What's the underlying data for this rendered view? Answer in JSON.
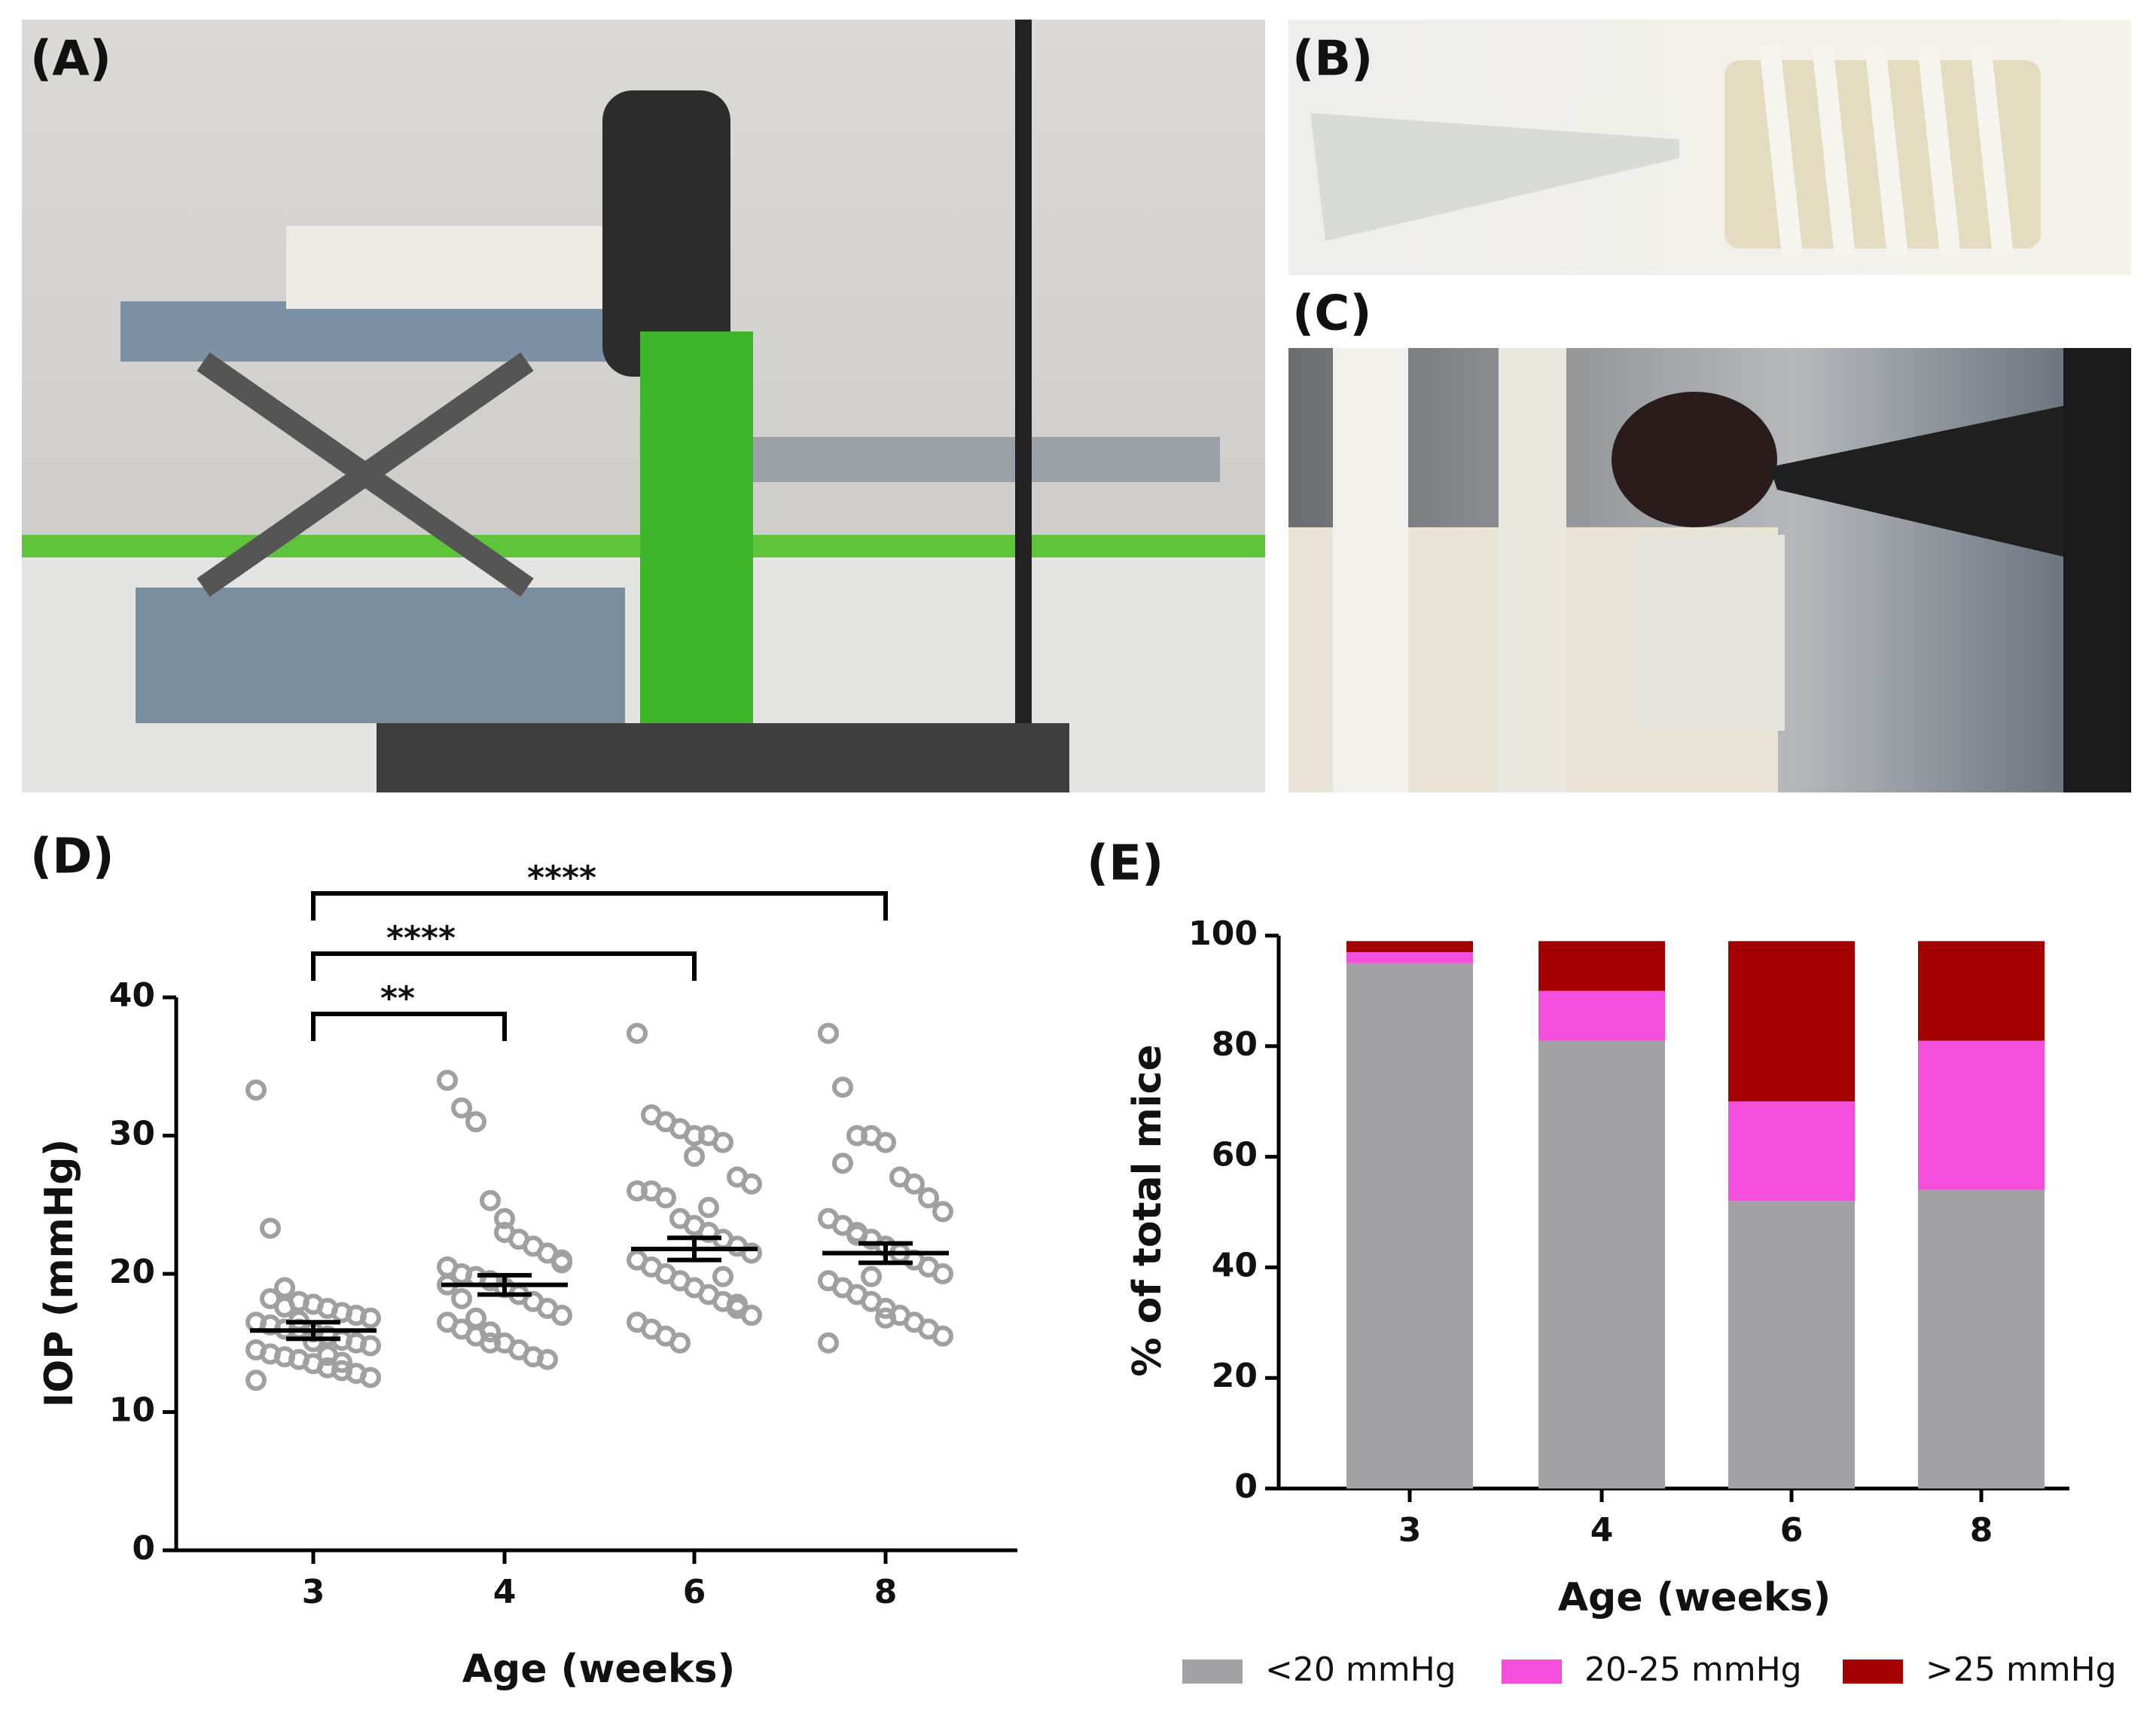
{
  "panels": [
    {
      "label": "(A)"
    },
    {
      "label": "(B)"
    },
    {
      "label": "(C)"
    }
  ],
  "chart_data": [
    {
      "type": "scatter",
      "panel_label": "(D)",
      "xlabel": "Age (weeks)",
      "ylabel": "IOP (mmHg)",
      "categories": [
        "3",
        "4",
        "6",
        "8"
      ],
      "color": "#a0a0a0",
      "mean_color": "#000000",
      "groups": [
        {
          "values": [
            33.3,
            23.3,
            19,
            18,
            17.8,
            17.5,
            17.2,
            17,
            16.8,
            16.5,
            16.3,
            16,
            16,
            15.8,
            15.5,
            15.2,
            15,
            14.8,
            14.5,
            14.2,
            14,
            13.8,
            13.5,
            13.2,
            13,
            12.8,
            12.5,
            12.3,
            18.2,
            17.6,
            16.6,
            15.1,
            14.1,
            13.6
          ],
          "mean": 15.9,
          "sem": 0.6
        },
        {
          "values": [
            34,
            32,
            31,
            25.3,
            23,
            22.5,
            22,
            21.5,
            21,
            20.5,
            20,
            19.8,
            19.5,
            19,
            18.5,
            18,
            17.5,
            17,
            16.5,
            16,
            15.5,
            15,
            15,
            14.5,
            14,
            13.8,
            20.8,
            19.2,
            18.2,
            16.8,
            15.8,
            24
          ],
          "mean": 19.2,
          "sem": 0.7
        },
        {
          "values": [
            37.4,
            31.5,
            31,
            30.5,
            30,
            30,
            29.5,
            27,
            26.5,
            26,
            26,
            25.5,
            24,
            23.5,
            23,
            22.5,
            22,
            21.5,
            21,
            20.5,
            20,
            19.5,
            19,
            18.5,
            18,
            17.5,
            17,
            16.5,
            16,
            15.5,
            15,
            28.5,
            24.8,
            19.8,
            17.8
          ],
          "mean": 21.8,
          "sem": 0.8
        },
        {
          "values": [
            37.4,
            33.5,
            30,
            30,
            29.5,
            27,
            26.5,
            25.5,
            24.5,
            24,
            23.5,
            23,
            22.5,
            22,
            21.5,
            21,
            20.5,
            20,
            19.5,
            19,
            18.5,
            18,
            17.5,
            17,
            16.5,
            16,
            15.5,
            15,
            28,
            22.8,
            19.8,
            16.8
          ],
          "mean": 21.5,
          "sem": 0.7
        }
      ],
      "significance": [
        "**",
        "****",
        "****"
      ],
      "ylim": [
        0,
        40
      ],
      "yticks": [
        0,
        10,
        20,
        30,
        40
      ]
    },
    {
      "type": "bar",
      "stacked": true,
      "panel_label": "(E)",
      "xlabel": "Age (weeks)",
      "ylabel": "% of total mice",
      "categories": [
        "3",
        "4",
        "6",
        "8"
      ],
      "series": [
        {
          "name": "<20 mmHg",
          "color": "#a2a1a6",
          "values": [
            95,
            81,
            52,
            54
          ]
        },
        {
          "name": "20-25 mmHg",
          "color": "#f44fdc",
          "values": [
            2,
            9,
            18,
            27
          ]
        },
        {
          "name": ">25 mmHg",
          "color": "#a30000",
          "values": [
            2,
            9,
            29,
            18
          ]
        }
      ],
      "ylim": [
        0,
        100
      ],
      "yticks": [
        0,
        20,
        40,
        60,
        80,
        100
      ],
      "legend": "bottom"
    }
  ]
}
